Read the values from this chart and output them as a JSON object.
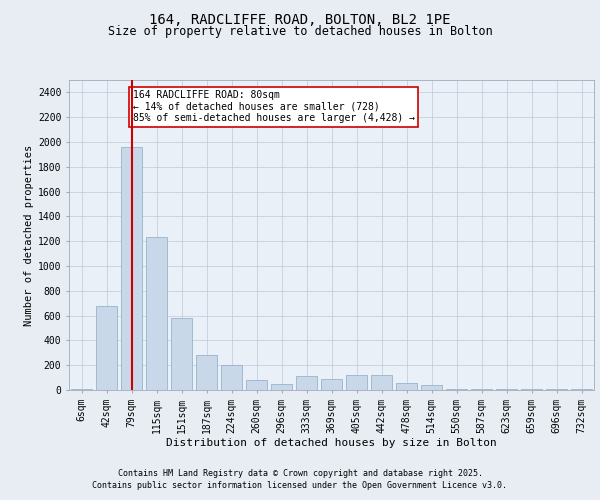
{
  "title_line1": "164, RADCLIFFE ROAD, BOLTON, BL2 1PE",
  "title_line2": "Size of property relative to detached houses in Bolton",
  "xlabel": "Distribution of detached houses by size in Bolton",
  "ylabel": "Number of detached properties",
  "categories": [
    "6sqm",
    "42sqm",
    "79sqm",
    "115sqm",
    "151sqm",
    "187sqm",
    "224sqm",
    "260sqm",
    "296sqm",
    "333sqm",
    "369sqm",
    "405sqm",
    "442sqm",
    "478sqm",
    "514sqm",
    "550sqm",
    "587sqm",
    "623sqm",
    "659sqm",
    "696sqm",
    "732sqm"
  ],
  "values": [
    10,
    680,
    1960,
    1230,
    580,
    280,
    200,
    80,
    50,
    110,
    90,
    120,
    120,
    60,
    40,
    10,
    10,
    5,
    5,
    5,
    5
  ],
  "bar_color": "#c8d8e8",
  "bar_edge_color": "#8aaac8",
  "vline_x": 2,
  "vline_color": "#cc0000",
  "annotation_text": "164 RADCLIFFE ROAD: 80sqm\n← 14% of detached houses are smaller (728)\n85% of semi-detached houses are larger (4,428) →",
  "annotation_box_color": "#ffffff",
  "annotation_box_edge": "#cc0000",
  "ylim": [
    0,
    2500
  ],
  "yticks": [
    0,
    200,
    400,
    600,
    800,
    1000,
    1200,
    1400,
    1600,
    1800,
    2000,
    2200,
    2400
  ],
  "bg_color": "#e8edf4",
  "plot_bg_color": "#eaf0f8",
  "footer_line1": "Contains HM Land Registry data © Crown copyright and database right 2025.",
  "footer_line2": "Contains public sector information licensed under the Open Government Licence v3.0.",
  "title1_fontsize": 10,
  "title2_fontsize": 8.5,
  "ylabel_fontsize": 7.5,
  "xlabel_fontsize": 8,
  "tick_fontsize": 7,
  "annot_fontsize": 7,
  "footer_fontsize": 6
}
